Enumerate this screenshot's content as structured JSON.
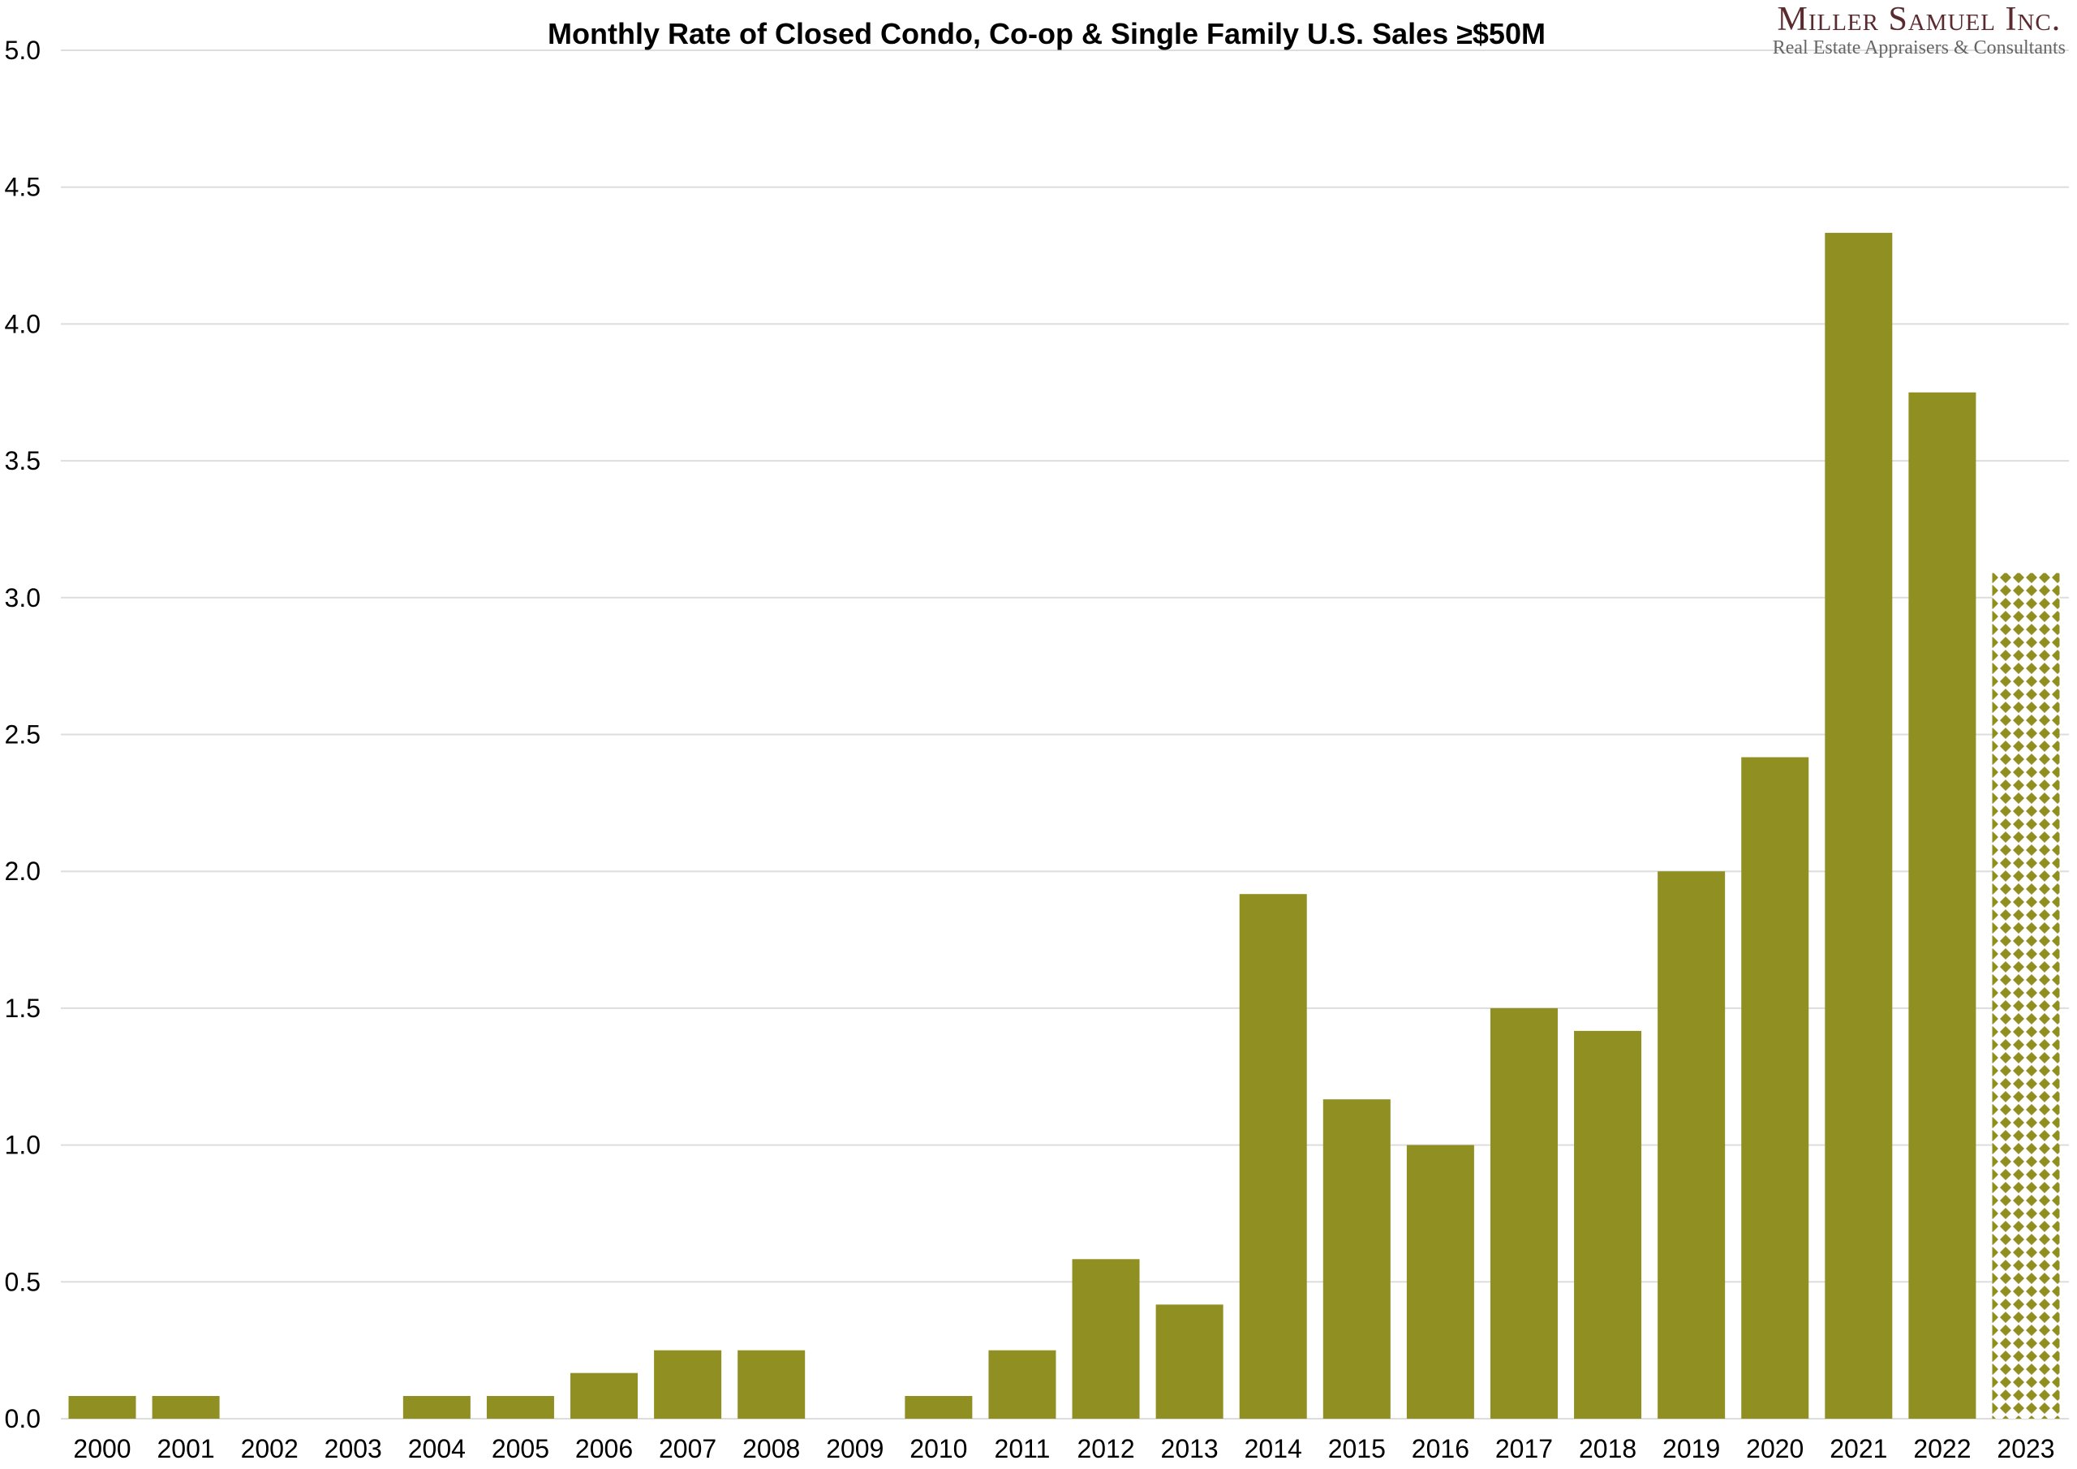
{
  "chart_data": {
    "type": "bar",
    "title": "Monthly Rate of Closed Condo, Co-op & Single Family U.S. Sales ≥$50M",
    "xlabel": "",
    "ylabel": "",
    "ylim": [
      0,
      5
    ],
    "yticks": [
      "0.0",
      "0.5",
      "1.0",
      "1.5",
      "2.0",
      "2.5",
      "3.0",
      "3.5",
      "4.0",
      "4.5",
      "5.0"
    ],
    "grid": true,
    "categories": [
      "2000",
      "2001",
      "2002",
      "2003",
      "2004",
      "2005",
      "2006",
      "2007",
      "2008",
      "2009",
      "2010",
      "2011",
      "2012",
      "2013",
      "2014",
      "2015",
      "2016",
      "2017",
      "2018",
      "2019",
      "2020",
      "2021",
      "2022",
      "2023"
    ],
    "values": [
      0.083,
      0.083,
      0,
      0,
      0.083,
      0.083,
      0.167,
      0.25,
      0.25,
      0,
      0.083,
      0.25,
      0.583,
      0.417,
      1.917,
      1.167,
      1.0,
      1.5,
      1.417,
      2.0,
      2.417,
      4.333,
      3.75,
      3.09
    ],
    "patterned_categories": [
      "2023"
    ],
    "bar_color": "#8f8f22",
    "grid_color": "#dddddd"
  },
  "logo": {
    "line1": "Miller Samuel Inc.",
    "line2": "Real Estate Appraisers & Consultants",
    "color": "#5a2a2e"
  }
}
